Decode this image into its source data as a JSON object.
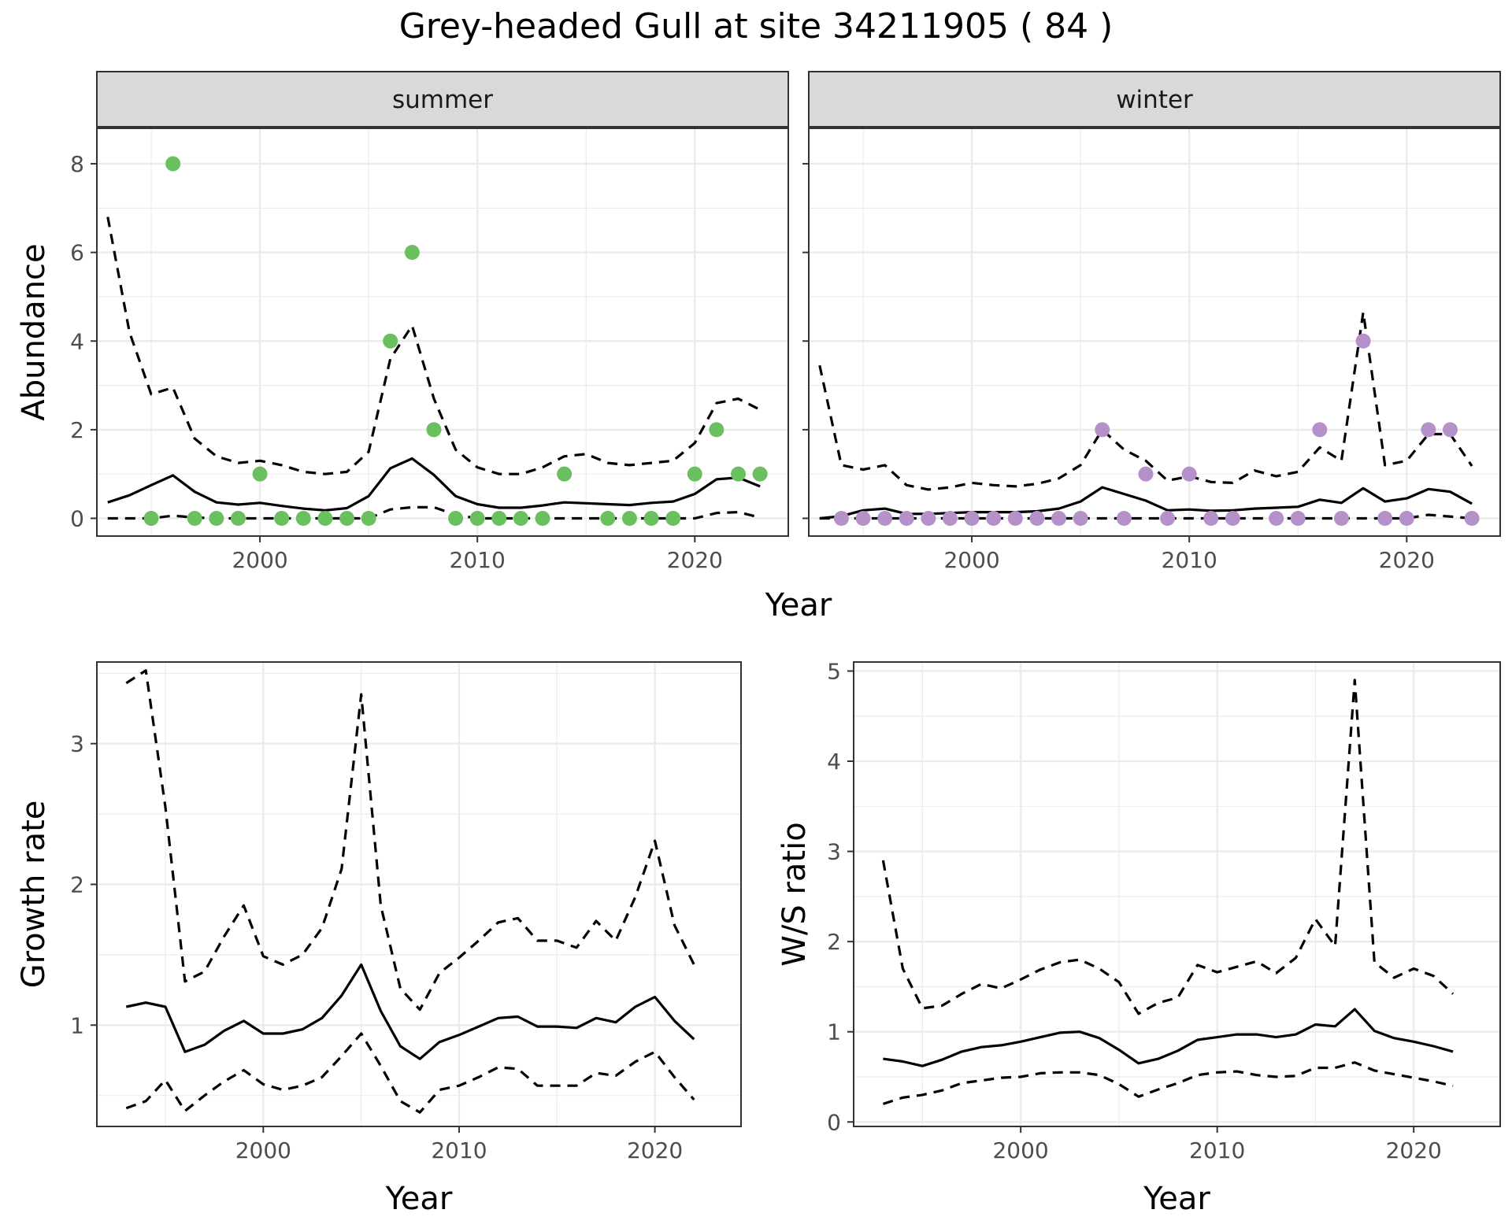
{
  "title": "Grey-headed Gull at site 34211905 ( 84 )",
  "colors": {
    "summer_points": "#6abf5e",
    "winter_points": "#b491c8",
    "line": "#000000",
    "grid": "#ebebeb",
    "strip_bg": "#d9d9d9"
  },
  "chart_data": [
    {
      "type": "line",
      "panel": "summer",
      "strip_label": "summer",
      "xlabel": "Year",
      "ylabel": "Abundance",
      "xlim": [
        1992.5,
        2024.3
      ],
      "ylim": [
        -0.4,
        8.8
      ],
      "xticks": [
        2000,
        2010,
        2020
      ],
      "yticks": [
        0,
        2,
        4,
        6,
        8
      ],
      "grid": true,
      "legend": "none",
      "x": [
        1993,
        1994,
        1995,
        1996,
        1997,
        1998,
        1999,
        2000,
        2001,
        2002,
        2003,
        2004,
        2005,
        2006,
        2007,
        2008,
        2009,
        2010,
        2011,
        2012,
        2013,
        2014,
        2015,
        2016,
        2017,
        2018,
        2019,
        2020,
        2021,
        2022,
        2023
      ],
      "series": [
        {
          "role": "estimate",
          "style": "solid",
          "values": [
            0.36,
            0.52,
            0.75,
            0.97,
            0.6,
            0.36,
            0.31,
            0.35,
            0.28,
            0.22,
            0.18,
            0.23,
            0.5,
            1.13,
            1.35,
            0.98,
            0.5,
            0.32,
            0.24,
            0.24,
            0.29,
            0.36,
            0.34,
            0.32,
            0.3,
            0.35,
            0.38,
            0.55,
            0.88,
            0.92,
            0.72
          ]
        },
        {
          "role": "upper",
          "style": "dashed",
          "values": [
            6.8,
            4.2,
            2.8,
            2.95,
            1.8,
            1.4,
            1.25,
            1.3,
            1.2,
            1.05,
            1.0,
            1.05,
            1.5,
            3.6,
            4.35,
            2.7,
            1.55,
            1.15,
            1.0,
            1.0,
            1.15,
            1.4,
            1.45,
            1.25,
            1.2,
            1.25,
            1.3,
            1.7,
            2.6,
            2.7,
            2.45
          ]
        },
        {
          "role": "lower",
          "style": "dashed",
          "values": [
            0,
            0,
            0,
            0.06,
            0.02,
            0,
            0,
            0,
            0,
            0,
            0,
            0,
            0,
            0.2,
            0.25,
            0.25,
            0.08,
            0,
            0,
            0,
            0,
            0,
            0,
            0,
            0,
            0,
            0,
            0,
            0.12,
            0.14,
            0.02
          ]
        }
      ],
      "points": {
        "x": [
          1995,
          1996,
          1997,
          1998,
          1999,
          2000,
          2001,
          2002,
          2003,
          2004,
          2005,
          2006,
          2007,
          2008,
          2009,
          2010,
          2011,
          2012,
          2013,
          2014,
          2016,
          2017,
          2018,
          2019,
          2020,
          2021,
          2022,
          2023
        ],
        "y": [
          0,
          8,
          0,
          0,
          0,
          1,
          0,
          0,
          0,
          0,
          0,
          4,
          6,
          2,
          0,
          0,
          0,
          0,
          0,
          1,
          0,
          0,
          0,
          0,
          1,
          2,
          1,
          1
        ]
      }
    },
    {
      "type": "line",
      "panel": "winter",
      "strip_label": "winter",
      "xlabel": "Year",
      "ylabel": "Abundance",
      "xlim": [
        1992.5,
        2024.3
      ],
      "ylim": [
        -0.4,
        8.8
      ],
      "xticks": [
        2000,
        2010,
        2020
      ],
      "yticks": [
        0,
        2,
        4,
        6,
        8
      ],
      "grid": true,
      "legend": "none",
      "x": [
        1993,
        1994,
        1995,
        1996,
        1997,
        1998,
        1999,
        2000,
        2001,
        2002,
        2003,
        2004,
        2005,
        2006,
        2007,
        2008,
        2009,
        2010,
        2011,
        2012,
        2013,
        2014,
        2015,
        2016,
        2017,
        2018,
        2019,
        2020,
        2021,
        2022,
        2023
      ],
      "series": [
        {
          "role": "estimate",
          "style": "solid",
          "values": [
            0,
            0.05,
            0.18,
            0.22,
            0.1,
            0.1,
            0.12,
            0.14,
            0.14,
            0.14,
            0.16,
            0.22,
            0.38,
            0.7,
            0.55,
            0.4,
            0.18,
            0.2,
            0.17,
            0.18,
            0.22,
            0.24,
            0.26,
            0.42,
            0.35,
            0.68,
            0.38,
            0.45,
            0.66,
            0.6,
            0.33
          ]
        },
        {
          "role": "upper",
          "style": "dashed",
          "values": [
            3.45,
            1.2,
            1.1,
            1.2,
            0.75,
            0.65,
            0.7,
            0.8,
            0.75,
            0.72,
            0.78,
            0.9,
            1.2,
            2.0,
            1.55,
            1.3,
            0.85,
            0.95,
            0.82,
            0.8,
            1.08,
            0.95,
            1.05,
            1.6,
            1.3,
            4.65,
            1.2,
            1.3,
            1.9,
            1.9,
            1.18
          ]
        },
        {
          "role": "lower",
          "style": "dashed",
          "values": [
            0,
            0,
            0,
            0,
            0,
            0,
            0,
            0,
            0,
            0,
            0,
            0,
            0,
            0,
            0,
            0,
            0,
            0,
            0,
            0,
            0,
            0,
            0,
            0,
            0,
            0,
            0,
            0,
            0.08,
            0.04,
            0
          ]
        }
      ],
      "points": {
        "x": [
          1994,
          1995,
          1996,
          1997,
          1998,
          1999,
          2000,
          2001,
          2002,
          2003,
          2004,
          2005,
          2006,
          2007,
          2008,
          2009,
          2010,
          2011,
          2012,
          2014,
          2015,
          2016,
          2017,
          2018,
          2019,
          2020,
          2021,
          2022,
          2023
        ],
        "y": [
          0,
          0,
          0,
          0,
          0,
          0,
          0,
          0,
          0,
          0,
          0,
          0,
          2,
          0,
          1,
          0,
          1,
          0,
          0,
          0,
          0,
          2,
          0,
          4,
          0,
          0,
          2,
          2,
          0
        ]
      }
    },
    {
      "type": "line",
      "panel": "growth",
      "xlabel": "Year",
      "ylabel": "Growth rate",
      "xlim": [
        1991.5,
        2024.4
      ],
      "ylim": [
        0.28,
        3.58
      ],
      "xticks": [
        2000,
        2010,
        2020
      ],
      "yticks": [
        1,
        2,
        3
      ],
      "grid": true,
      "legend": "none",
      "x": [
        1993,
        1994,
        1995,
        1996,
        1997,
        1998,
        1999,
        2000,
        2001,
        2002,
        2003,
        2004,
        2005,
        2006,
        2007,
        2008,
        2009,
        2010,
        2011,
        2012,
        2013,
        2014,
        2015,
        2016,
        2017,
        2018,
        2019,
        2020,
        2021,
        2022
      ],
      "series": [
        {
          "role": "estimate",
          "style": "solid",
          "values": [
            1.13,
            1.16,
            1.13,
            0.81,
            0.86,
            0.96,
            1.03,
            0.94,
            0.94,
            0.97,
            1.05,
            1.21,
            1.43,
            1.1,
            0.85,
            0.76,
            0.88,
            0.93,
            0.99,
            1.05,
            1.06,
            0.99,
            0.99,
            0.98,
            1.05,
            1.02,
            1.13,
            1.2,
            1.03,
            0.9
          ]
        },
        {
          "role": "upper",
          "style": "dashed",
          "values": [
            3.43,
            3.52,
            2.55,
            1.31,
            1.38,
            1.63,
            1.85,
            1.49,
            1.43,
            1.5,
            1.69,
            2.11,
            3.35,
            1.85,
            1.26,
            1.11,
            1.37,
            1.48,
            1.6,
            1.73,
            1.76,
            1.6,
            1.6,
            1.55,
            1.74,
            1.6,
            1.91,
            2.31,
            1.71,
            1.43
          ]
        },
        {
          "role": "lower",
          "style": "dashed",
          "values": [
            0.41,
            0.46,
            0.61,
            0.39,
            0.5,
            0.6,
            0.68,
            0.58,
            0.54,
            0.57,
            0.63,
            0.78,
            0.94,
            0.71,
            0.46,
            0.38,
            0.54,
            0.57,
            0.63,
            0.7,
            0.69,
            0.57,
            0.57,
            0.57,
            0.66,
            0.64,
            0.74,
            0.81,
            0.63,
            0.47
          ]
        }
      ]
    },
    {
      "type": "line",
      "panel": "ratio",
      "xlabel": "Year",
      "ylabel": "W/S ratio",
      "xlim": [
        1991.5,
        2024.4
      ],
      "ylim": [
        -0.05,
        5.1
      ],
      "xticks": [
        2000,
        2010,
        2020
      ],
      "yticks": [
        0,
        1,
        2,
        3,
        4,
        5
      ],
      "grid": true,
      "legend": "none",
      "x": [
        1993,
        1994,
        1995,
        1996,
        1997,
        1998,
        1999,
        2000,
        2001,
        2002,
        2003,
        2004,
        2005,
        2006,
        2007,
        2008,
        2009,
        2010,
        2011,
        2012,
        2013,
        2014,
        2015,
        2016,
        2017,
        2018,
        2019,
        2020,
        2021,
        2022
      ],
      "series": [
        {
          "role": "estimate",
          "style": "solid",
          "values": [
            0.7,
            0.67,
            0.62,
            0.69,
            0.78,
            0.83,
            0.85,
            0.89,
            0.94,
            0.99,
            1.0,
            0.93,
            0.8,
            0.65,
            0.7,
            0.79,
            0.91,
            0.94,
            0.97,
            0.97,
            0.94,
            0.97,
            1.08,
            1.06,
            1.25,
            1.01,
            0.93,
            0.89,
            0.84,
            0.78
          ]
        },
        {
          "role": "upper",
          "style": "dashed",
          "values": [
            2.9,
            1.7,
            1.26,
            1.29,
            1.42,
            1.53,
            1.48,
            1.58,
            1.69,
            1.77,
            1.8,
            1.7,
            1.55,
            1.2,
            1.32,
            1.38,
            1.74,
            1.66,
            1.72,
            1.78,
            1.65,
            1.82,
            2.25,
            1.95,
            4.9,
            1.77,
            1.6,
            1.7,
            1.62,
            1.42
          ]
        },
        {
          "role": "lower",
          "style": "dashed",
          "values": [
            0.2,
            0.27,
            0.3,
            0.35,
            0.43,
            0.46,
            0.49,
            0.5,
            0.54,
            0.55,
            0.55,
            0.52,
            0.42,
            0.28,
            0.36,
            0.43,
            0.52,
            0.55,
            0.56,
            0.52,
            0.5,
            0.51,
            0.6,
            0.6,
            0.66,
            0.57,
            0.53,
            0.49,
            0.45,
            0.4
          ]
        }
      ]
    }
  ]
}
